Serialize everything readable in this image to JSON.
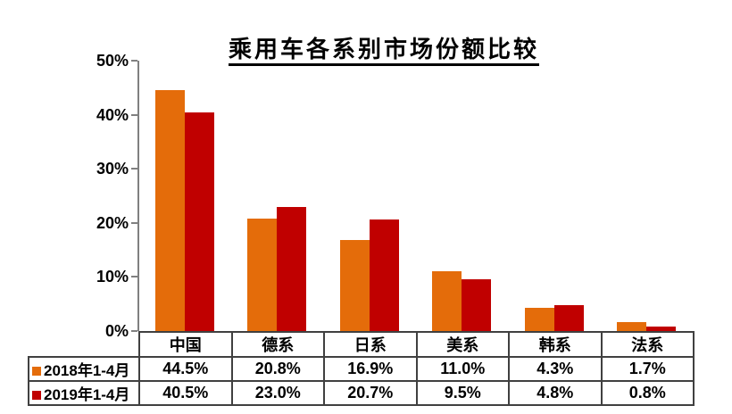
{
  "title": "乘用车各系别市场份额比较",
  "colors": {
    "series_2018": "#E46C0A",
    "series_2019": "#C00000",
    "axis": "#808080",
    "table_border": "#404040",
    "text": "#000000",
    "background": "#FFFFFF"
  },
  "chart_data": {
    "type": "bar",
    "title": "乘用车各系别市场份额比较",
    "categories": [
      "中国",
      "德系",
      "日系",
      "美系",
      "韩系",
      "法系"
    ],
    "series": [
      {
        "name": "2018年1-4月",
        "color": "#E46C0A",
        "values": [
          44.5,
          20.8,
          16.9,
          11.0,
          4.3,
          1.7
        ],
        "value_labels": [
          "44.5%",
          "20.8%",
          "16.9%",
          "11.0%",
          "4.3%",
          "1.7%"
        ]
      },
      {
        "name": "2019年1-4月",
        "color": "#C00000",
        "values": [
          40.5,
          23.0,
          20.7,
          9.5,
          4.8,
          0.8
        ],
        "value_labels": [
          "40.5%",
          "23.0%",
          "20.7%",
          "9.5%",
          "4.8%",
          "0.8%"
        ]
      }
    ],
    "ylim": [
      0,
      50
    ],
    "ytick_step": 10,
    "ytick_labels": [
      "0%",
      "10%",
      "20%",
      "30%",
      "40%",
      "50%"
    ],
    "grid": false,
    "legend_position": "data-table-row-headers",
    "data_table_shown": true
  }
}
